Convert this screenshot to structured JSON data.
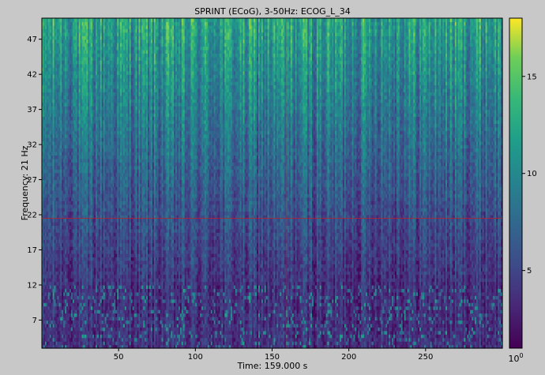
{
  "chart_data": {
    "type": "heatmap",
    "title": "SPRINT (ECoG), 3-50Hz: ECOG_L_34",
    "xlabel": "Time: 159.000 s",
    "ylabel": "Frequency: 21 Hz",
    "x_tick_labels": [
      "50",
      "100",
      "150",
      "200",
      "250"
    ],
    "x_ticks": [
      50,
      100,
      150,
      200,
      250
    ],
    "xlim": [
      0,
      300
    ],
    "y_tick_labels": [
      "7",
      "12",
      "17",
      "22",
      "27",
      "32",
      "37",
      "42",
      "47"
    ],
    "y_ticks": [
      7,
      12,
      17,
      22,
      27,
      32,
      37,
      42,
      47
    ],
    "ylim": [
      3,
      50
    ],
    "cursor_time": 159.0,
    "cursor_frequency": 21.5,
    "colorbar": {
      "tick_labels": [
        "5",
        "10",
        "15"
      ],
      "ticks": [
        5,
        10,
        15
      ],
      "range": [
        1,
        18
      ],
      "bottom_label_base": "10",
      "bottom_label_exp": "0"
    },
    "colormap": "viridis",
    "cursor_color": "#c81e1e"
  }
}
